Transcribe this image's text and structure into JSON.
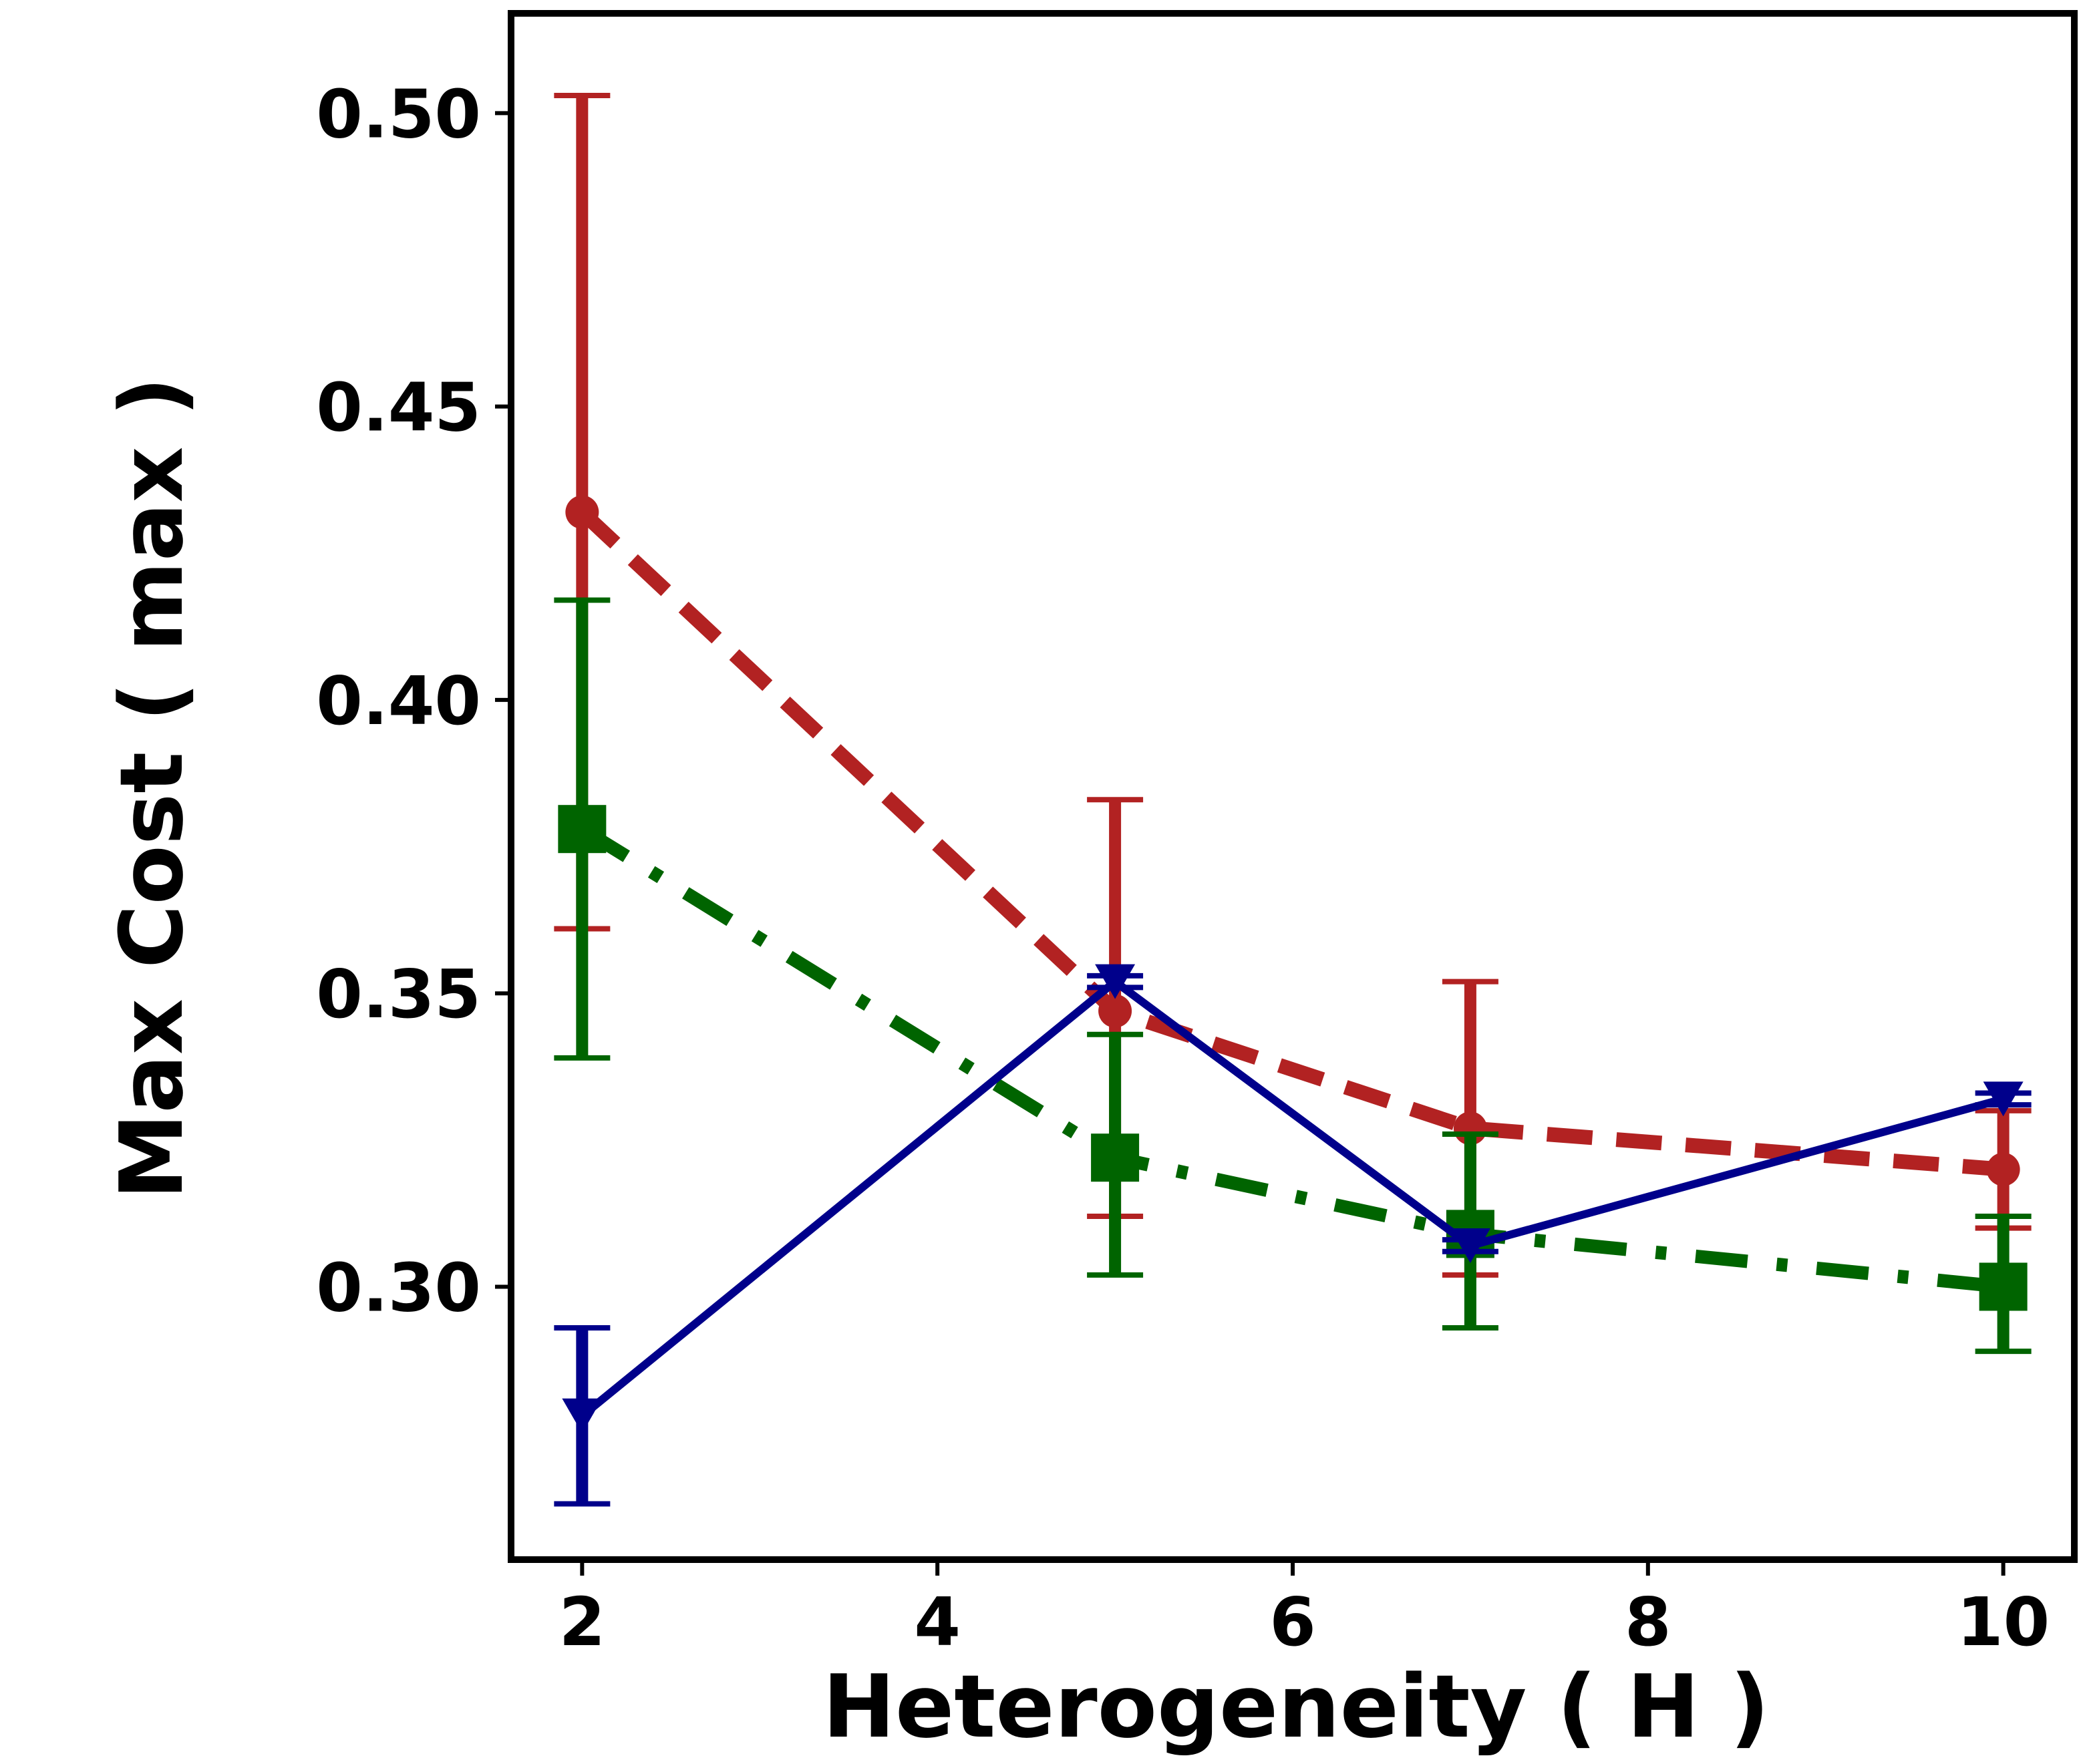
{
  "chart_data": {
    "type": "line",
    "title": "",
    "xlabel": "Heterogeneity ( H )",
    "ylabel": "Max Cost ( max  )",
    "xlim": [
      1.6,
      10.4
    ],
    "ylim": [
      0.2535,
      0.517
    ],
    "xticks": [
      2,
      4,
      6,
      8,
      10
    ],
    "yticks": [
      0.3,
      0.35,
      0.4,
      0.45,
      0.5
    ],
    "xtick_labels": [
      "2",
      "4",
      "6",
      "8",
      "10"
    ],
    "ytick_labels": [
      "0.30",
      "0.35",
      "0.40",
      "0.45",
      "0.50"
    ],
    "grid": false,
    "legend": null,
    "series": [
      {
        "name": "red-dashed-circle",
        "color": "#b22222",
        "line_style": "dashed",
        "marker": "circle",
        "x": [
          2,
          5,
          7,
          10
        ],
        "y": [
          0.432,
          0.347,
          0.327,
          0.32
        ],
        "err_low": [
          0.361,
          0.312,
          0.302,
          0.31
        ],
        "err_high": [
          0.503,
          0.383,
          0.352,
          0.33
        ]
      },
      {
        "name": "green-dashdot-square",
        "color": "#006400",
        "line_style": "dashdot",
        "marker": "square",
        "x": [
          2,
          5,
          7,
          10
        ],
        "y": [
          0.378,
          0.322,
          0.309,
          0.3
        ],
        "err_low": [
          0.339,
          0.302,
          0.293,
          0.289
        ],
        "err_high": [
          0.417,
          0.343,
          0.326,
          0.312
        ]
      },
      {
        "name": "blue-solid-triangle",
        "color": "#00008b",
        "line_style": "solid",
        "marker": "triangle_down",
        "x": [
          2,
          5,
          7,
          10
        ],
        "y": [
          0.278,
          0.352,
          0.307,
          0.332
        ],
        "err_low": [
          0.263,
          0.351,
          0.306,
          0.331
        ],
        "err_high": [
          0.293,
          0.353,
          0.308,
          0.333
        ]
      }
    ]
  }
}
